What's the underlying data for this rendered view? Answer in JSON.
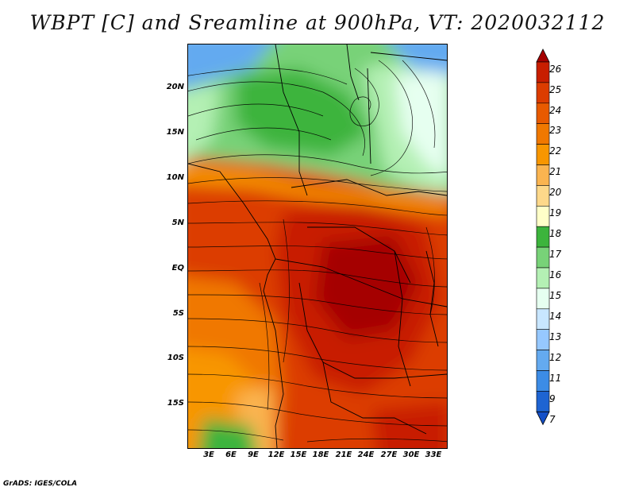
{
  "title": "WBPT [C] and Sreamline at 900hPa, VT: 2020032112",
  "lat_labels": [
    "20N",
    "15N",
    "10N",
    "5N",
    "EQ",
    "5S",
    "10S",
    "15S"
  ],
  "lon_labels": [
    "3E",
    "6E",
    "9E",
    "12E",
    "15E",
    "18E",
    "21E",
    "24E",
    "27E",
    "30E",
    "33E"
  ],
  "colorbar": {
    "labels": [
      "26",
      "25",
      "24",
      "23",
      "22",
      "21",
      "20",
      "19",
      "18",
      "17",
      "16",
      "15",
      "14",
      "13",
      "12",
      "11",
      "9",
      "7"
    ],
    "colors": [
      "#a50000",
      "#c81e00",
      "#dc3c00",
      "#e85a00",
      "#f07800",
      "#f89600",
      "#fab450",
      "#fdd88a",
      "#ffffc8",
      "#3cb43c",
      "#78d278",
      "#b4f0b4",
      "#e6fff0",
      "#c8e6ff",
      "#96c8ff",
      "#64aaf0",
      "#3c8ce6",
      "#1e64d2",
      "#1450c8"
    ]
  },
  "footer": "GrADS: IGES/COLA"
}
